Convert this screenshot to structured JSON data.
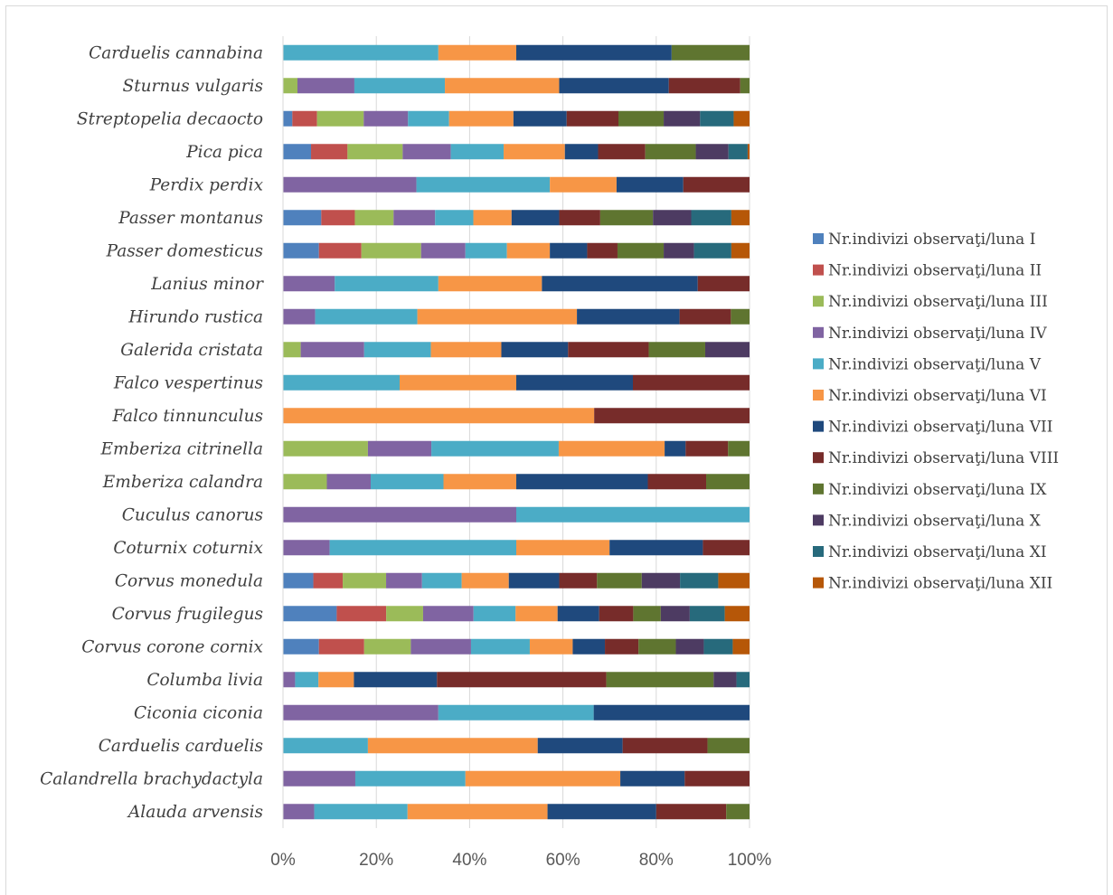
{
  "chart_data": {
    "type": "bar",
    "orientation": "horizontal",
    "stacked": "100%",
    "categories": [
      "Carduelis cannabina",
      "Sturnus vulgaris",
      "Streptopelia decaocto",
      "Pica pica",
      "Perdix perdix",
      "Passer montanus",
      "Passer domesticus",
      "Lanius minor",
      "Hirundo rustica",
      "Galerida cristata",
      "Falco vespertinus",
      "Falco  tinnunculus",
      "Emberiza citrinella",
      "Emberiza calandra",
      "Cuculus canorus",
      "Coturnix coturnix",
      "Corvus monedula",
      "Corvus frugilegus",
      "Corvus corone cornix",
      "Columba livia",
      "Ciconia ciconia",
      "Carduelis carduelis",
      "Calandrella brachydactyla",
      "Alauda arvensis"
    ],
    "x_ticks": [
      "0%",
      "20%",
      "40%",
      "60%",
      "80%",
      "100%"
    ],
    "xlim": [
      0,
      100
    ],
    "legend_position": "right",
    "series": [
      {
        "name": "Nr.indivizi observaţi/luna I",
        "color": "#4f81bd",
        "values": [
          0,
          0,
          2,
          6,
          0,
          8.2,
          7.7,
          0,
          0,
          0,
          0,
          0,
          0,
          0,
          0,
          0,
          6.5,
          11.5,
          7.7,
          0,
          0,
          0,
          0,
          0
        ]
      },
      {
        "name": "Nr.indivizi observaţi/luna II",
        "color": "#c0504d",
        "values": [
          0,
          0,
          5.3,
          7.8,
          0,
          7.2,
          9.1,
          0,
          0,
          0,
          0,
          0,
          0,
          0,
          0,
          0,
          6.3,
          10.6,
          9.7,
          0,
          0,
          0,
          0,
          0
        ]
      },
      {
        "name": "Nr.indivizi observaţi/luna III",
        "color": "#9bbb59",
        "values": [
          0,
          3.1,
          10,
          11.8,
          0,
          8.3,
          12.8,
          0,
          0,
          3.8,
          0,
          0,
          18.2,
          9.4,
          0,
          0,
          9.3,
          7.9,
          10,
          0,
          0,
          0,
          0,
          0
        ]
      },
      {
        "name": "Nr.indivizi observaţi/luna IV",
        "color": "#8064a2",
        "values": [
          0,
          12.2,
          9.5,
          10.3,
          28.6,
          8.9,
          9.5,
          11.1,
          6.9,
          13.6,
          0,
          0,
          13.6,
          9.4,
          50,
          10,
          7.7,
          10.8,
          12.9,
          2.6,
          33.3,
          0,
          15.5,
          6.7
        ]
      },
      {
        "name": "Nr.indivizi observaţi/luna V",
        "color": "#4bacc6",
        "values": [
          33.3,
          19.4,
          8.8,
          11.3,
          28.6,
          8.2,
          8.9,
          22.2,
          21.9,
          14.3,
          25,
          0,
          27.3,
          15.6,
          50,
          40,
          8.5,
          9,
          12.6,
          5,
          33.3,
          18.2,
          23.6,
          20
        ]
      },
      {
        "name": "Nr.indivizi observaţi/luna VI",
        "color": "#f79646",
        "values": [
          16.7,
          24.5,
          13.8,
          13.1,
          14.3,
          8.2,
          9.2,
          22.2,
          34.2,
          15.1,
          25,
          66.7,
          22.7,
          15.6,
          0,
          20,
          10.1,
          9,
          9.2,
          7.6,
          0,
          36.4,
          33.2,
          30
        ]
      },
      {
        "name": "Nr.indivizi observaţi/luna VII",
        "color": "#1f497d",
        "values": [
          33.3,
          23.5,
          11.4,
          7.1,
          14.3,
          10.2,
          8,
          33.4,
          22,
          14.3,
          25,
          0,
          4.5,
          28.2,
          0,
          20,
          10.8,
          8.9,
          6.9,
          17.8,
          33.4,
          18.2,
          13.8,
          23.3
        ]
      },
      {
        "name": "Nr.indivizi observaţi/luna VIII",
        "color": "#772c2a",
        "values": [
          0,
          15.3,
          11.1,
          10.1,
          14.2,
          8.8,
          6.5,
          11.1,
          11,
          17.3,
          25,
          33.3,
          9.1,
          12.5,
          0,
          10,
          8.1,
          7.3,
          7.2,
          36.3,
          0,
          18.2,
          13.9,
          15
        ]
      },
      {
        "name": "Nr.indivizi observaţi/luna IX",
        "color": "#5f7530",
        "values": [
          16.7,
          2,
          9.7,
          10.8,
          0,
          11.3,
          9.9,
          0,
          4,
          12.1,
          0,
          0,
          4.6,
          9.3,
          0,
          0,
          9.6,
          5.9,
          8,
          23,
          0,
          9,
          0,
          5
        ]
      },
      {
        "name": "Nr.indivizi observaţi/luna X",
        "color": "#4d3b62",
        "values": [
          0,
          0,
          7.8,
          7,
          0,
          8.2,
          6.5,
          0,
          0,
          9.5,
          0,
          0,
          0,
          0,
          0,
          0,
          8.2,
          6.2,
          6,
          4.9,
          0,
          0,
          0,
          0
        ]
      },
      {
        "name": "Nr.indivizi observaţi/luna XI",
        "color": "#276a7c",
        "values": [
          0,
          0,
          7.2,
          4.1,
          0,
          8.6,
          8,
          0,
          0,
          0,
          0,
          0,
          0,
          0,
          0,
          0,
          8.2,
          7.5,
          6.2,
          2.8,
          0,
          0,
          0,
          0
        ]
      },
      {
        "name": "Nr.indivizi observaţi/luna XII",
        "color": "#b65708",
        "values": [
          0,
          0,
          3.4,
          0.4,
          0,
          3.9,
          3.9,
          0,
          0,
          0,
          0,
          0,
          0,
          0,
          0,
          0,
          6.7,
          5.3,
          3.6,
          0,
          0,
          0,
          0,
          0
        ]
      }
    ]
  }
}
